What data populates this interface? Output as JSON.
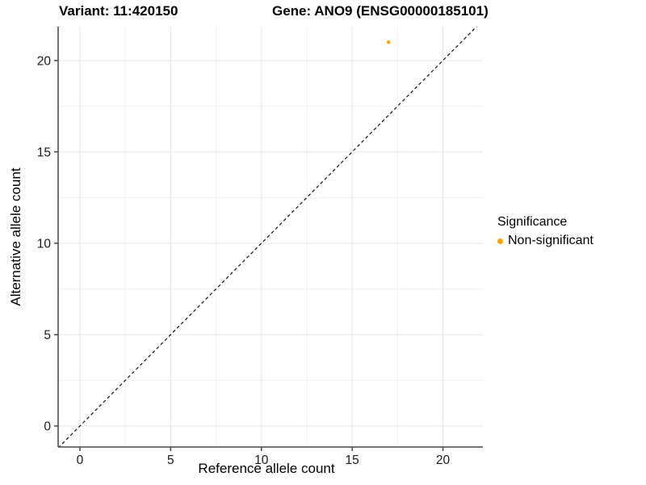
{
  "window": {
    "background": "#FFFFFF"
  },
  "chart_data": {
    "type": "scatter",
    "titles": {
      "left": "Variant: 11:420150",
      "right": "Gene: ANO9 (ENSG00000185101)"
    },
    "xlabel": "Reference allele count",
    "ylabel": "Alternative allele count",
    "xlim": [
      -1.2,
      22.2
    ],
    "ylim": [
      -1.15,
      21.85
    ],
    "xticks": [
      0,
      5,
      10,
      15,
      20
    ],
    "yticks": [
      0,
      5,
      10,
      15,
      20
    ],
    "minor_xticks": [
      2.5,
      7.5,
      12.5,
      17.5
    ],
    "minor_yticks": [
      2.5,
      7.5,
      12.5,
      17.5
    ],
    "grid": "major+minor, white background",
    "series": [
      {
        "name": "Non-significant",
        "color": "#FFA500",
        "points": [
          {
            "x": 17,
            "y": 21
          }
        ]
      }
    ],
    "reference_line": {
      "slope": 1,
      "intercept": 0,
      "style": "dashed",
      "color": "#111111"
    },
    "legend": {
      "title": "Significance",
      "position": "right",
      "items": [
        {
          "label": "Non-significant",
          "color": "#FFA500"
        }
      ]
    },
    "colors": {
      "point": "#FFA500",
      "grid_major": "#E4E4E4",
      "grid_minor": "#F1F1F1",
      "axis_line": "#474747",
      "tick_text": "#1A1A1A"
    }
  }
}
